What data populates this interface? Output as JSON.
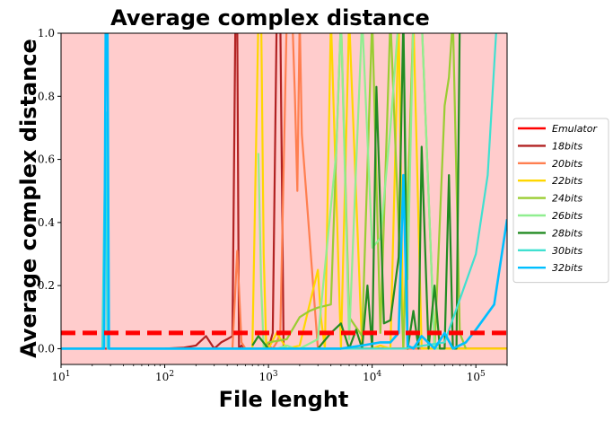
{
  "chart_data": {
    "type": "line",
    "title": "Average complex distance",
    "xlabel": "File lenght",
    "ylabel": "Average complex distance",
    "xscale": "log",
    "xlim": [
      10,
      200000
    ],
    "ylim": [
      -0.05,
      1.0
    ],
    "background_color": "#ffcccc",
    "xticks": [
      {
        "value": 10,
        "base": "10",
        "exp": "1"
      },
      {
        "value": 100,
        "base": "10",
        "exp": "2"
      },
      {
        "value": 1000,
        "base": "10",
        "exp": "3"
      },
      {
        "value": 10000,
        "base": "10",
        "exp": "4"
      },
      {
        "value": 100000,
        "base": "10",
        "exp": "5"
      }
    ],
    "yticks": [
      {
        "value": 0.0,
        "label": "0.0"
      },
      {
        "value": 0.2,
        "label": "0.2"
      },
      {
        "value": 0.4,
        "label": "0.4"
      },
      {
        "value": 0.6,
        "label": "0.6"
      },
      {
        "value": 0.8,
        "label": "0.8"
      },
      {
        "value": 1.0,
        "label": "1.0"
      }
    ],
    "threshold": {
      "value": 0.05,
      "color": "#ff0000",
      "style": "dashed"
    },
    "legend_position": "center-right",
    "series": [
      {
        "name": "Emulator",
        "color": "#ff0000",
        "x": [
          10,
          200000
        ],
        "y": [
          0,
          0
        ]
      },
      {
        "name": "18bits",
        "color": "#b22222",
        "x": [
          100,
          150,
          200,
          250,
          300,
          350,
          400,
          450,
          480,
          500,
          520,
          550,
          600,
          700,
          800,
          900,
          1000,
          1100,
          1200,
          1300,
          1400,
          2000,
          5000,
          10000,
          200000
        ],
        "y": [
          0,
          0.003,
          0.01,
          0.04,
          0.0,
          0.02,
          0.03,
          0.04,
          1.05,
          1.05,
          0.0,
          0.01,
          0.0,
          0.0,
          0.0,
          0.0,
          0.0,
          0.05,
          1.05,
          1.05,
          0.0,
          0.0,
          0.0,
          0.0,
          0.0
        ]
      },
      {
        "name": "20bits",
        "color": "#ff7f50",
        "x": [
          450,
          500,
          550,
          600,
          700,
          800,
          900,
          1000,
          1100,
          1200,
          1300,
          1500,
          1700,
          1800,
          1900,
          2000,
          2100,
          3000,
          200000
        ],
        "y": [
          0.0,
          0.31,
          0.02,
          0.0,
          0.0,
          0.0,
          0.0,
          0.01,
          0.0,
          0.02,
          0.05,
          1.05,
          1.05,
          0.8,
          0.5,
          1.05,
          0.68,
          0.0,
          0.0
        ]
      },
      {
        "name": "22bits",
        "color": "#ffd700",
        "x": [
          700,
          800,
          850,
          900,
          950,
          1000,
          1200,
          1500,
          2000,
          3000,
          3200,
          3500,
          4000,
          5000,
          6000,
          8000,
          10000,
          12000,
          15000,
          18000,
          20000,
          25000,
          30000,
          200000
        ],
        "y": [
          0.0,
          1.05,
          1.05,
          0.3,
          0.02,
          0.0,
          0.05,
          0.0,
          0.01,
          0.25,
          0.1,
          0.0,
          1.05,
          0.0,
          1.05,
          0.0,
          0.0,
          0.01,
          0.0,
          1.05,
          0.0,
          1.05,
          0.0,
          0.0
        ]
      },
      {
        "name": "24bits",
        "color": "#9acd32",
        "x": [
          800,
          900,
          1000,
          1500,
          2000,
          2500,
          3000,
          4000,
          5000,
          6000,
          8000,
          10000,
          12000,
          15000,
          20000,
          25000,
          30000,
          40000,
          50000,
          55000,
          60000,
          70000,
          80000
        ],
        "y": [
          0.0,
          0.0,
          0.02,
          0.03,
          0.1,
          0.12,
          0.13,
          0.14,
          1.05,
          0.1,
          0.04,
          1.05,
          0.05,
          1.05,
          0.0,
          1.05,
          1.05,
          0.0,
          0.77,
          0.86,
          1.05,
          0.05,
          0.0
        ]
      },
      {
        "name": "26bits",
        "color": "#90ee90",
        "x": [
          800,
          850,
          900,
          1000,
          1200,
          1500,
          1800,
          2000,
          3000,
          4000,
          4500,
          5000,
          6000,
          8000,
          10000,
          12000,
          15000,
          18000,
          20000,
          22000,
          25000,
          30000,
          40000,
          50000
        ],
        "y": [
          0.62,
          0.2,
          0.0,
          0.0,
          0.0,
          0.01,
          0.0,
          0.0,
          0.03,
          0.45,
          0.62,
          1.05,
          0.03,
          1.05,
          0.32,
          0.35,
          0.7,
          1.05,
          1.05,
          0.22,
          1.05,
          1.05,
          0.0,
          0.0
        ]
      },
      {
        "name": "28bits",
        "color": "#228b22",
        "x": [
          700,
          800,
          1000,
          2000,
          3000,
          4000,
          5000,
          6000,
          7000,
          8000,
          9000,
          10000,
          11000,
          13000,
          15000,
          18000,
          20000,
          22000,
          25000,
          28000,
          30000,
          35000,
          40000,
          45000,
          50000,
          55000,
          60000,
          65000,
          70000,
          80000,
          100000
        ],
        "y": [
          0.01,
          0.04,
          0.0,
          0.0,
          0.0,
          0.05,
          0.08,
          0.0,
          0.06,
          0.0,
          0.2,
          0.0,
          0.83,
          0.08,
          0.09,
          0.29,
          1.05,
          0.0,
          0.12,
          0.0,
          0.64,
          0.0,
          0.2,
          0.0,
          0.0,
          0.55,
          0.0,
          0.0,
          1.05,
          1.05,
          1.05
        ]
      },
      {
        "name": "30bits",
        "color": "#40e0d0",
        "x": [
          10,
          25,
          27,
          28,
          30,
          100,
          1000,
          5000,
          10000,
          20000,
          50000,
          100000,
          130000,
          160000,
          200000
        ],
        "y": [
          0.0,
          0.0,
          0.75,
          0.0,
          0.0,
          0.0,
          0.0,
          0.0,
          0.0,
          0.0,
          0.02,
          0.3,
          0.55,
          1.05,
          1.05
        ]
      },
      {
        "name": "32bits",
        "color": "#00bfff",
        "x": [
          10,
          26,
          27,
          28,
          29,
          100,
          1000,
          5000,
          8000,
          12000,
          15000,
          18000,
          20000,
          22000,
          25000,
          30000,
          40000,
          50000,
          60000,
          80000,
          100000,
          150000,
          200000
        ],
        "y": [
          0.0,
          0.0,
          1.05,
          1.05,
          0.0,
          0.0,
          0.0,
          0.0,
          0.01,
          0.02,
          0.02,
          0.05,
          0.55,
          0.01,
          0.0,
          0.04,
          0.0,
          0.05,
          0.0,
          0.02,
          0.06,
          0.14,
          0.41
        ]
      }
    ]
  }
}
